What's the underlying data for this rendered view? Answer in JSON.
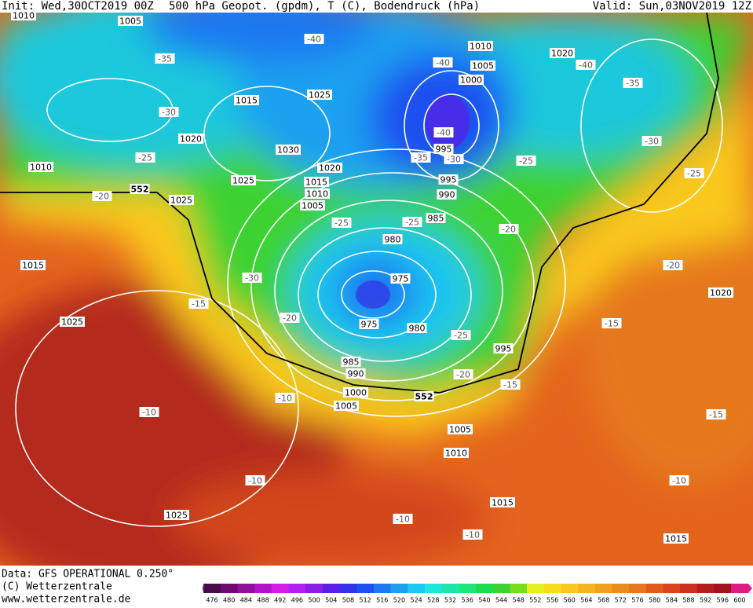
{
  "header": {
    "init": "Init: Wed,30OCT2019 00Z",
    "title": "500 hPa Geopot. (gpdm), T (C), Bodendruck (hPa)",
    "valid": "Valid: Sun,03NOV2019 12Z"
  },
  "footer": {
    "source": "Data: GFS OPERATIONAL 0.250°",
    "copyright": "(C) Wetterzentrale",
    "url": "www.wetterzentrale.de"
  },
  "legend": {
    "levels": [
      476,
      480,
      484,
      488,
      492,
      496,
      500,
      504,
      508,
      512,
      516,
      520,
      524,
      528,
      532,
      536,
      540,
      544,
      548,
      552,
      556,
      560,
      564,
      568,
      572,
      576,
      580,
      584,
      588,
      592,
      596,
      600
    ],
    "colors": [
      "#4b0a4b",
      "#6e0a6e",
      "#91109a",
      "#b414c8",
      "#d21ee6",
      "#b41ef0",
      "#8c1ee6",
      "#5a1ee6",
      "#3232e6",
      "#1e50f0",
      "#1e78f0",
      "#1ea0f0",
      "#1ec8f0",
      "#1ee6dc",
      "#1ee6aa",
      "#1ee678",
      "#1edc50",
      "#3cd232",
      "#78dc1e",
      "#e6f01e",
      "#fadc1e",
      "#fac81e",
      "#f5b41e",
      "#f0a01e",
      "#eb8c1e",
      "#e6781e",
      "#e15a1e",
      "#d7461e",
      "#c8321e",
      "#b41e1e",
      "#a0141e",
      "#dc1e82"
    ]
  },
  "pressure_labels": [
    "1010",
    "1005",
    "1010",
    "1005",
    "1000",
    "1020",
    "1015",
    "1025",
    "1020",
    "1030",
    "1020",
    "995",
    "1010",
    "1025",
    "1015",
    "1010",
    "1005",
    "995",
    "990",
    "985",
    "1025",
    "980",
    "975",
    "1015",
    "1025",
    "975",
    "980",
    "995",
    "1020",
    "985",
    "990",
    "1000",
    "1005",
    "1005",
    "1010",
    "1015",
    "1025",
    "1015"
  ],
  "temperature_labels": [
    "-40",
    "-35",
    "-40",
    "-40",
    "-35",
    "-30",
    "-40",
    "-35",
    "-30",
    "-25",
    "-30",
    "-25",
    "-25",
    "-20",
    "-25",
    "-25",
    "-20",
    "-30",
    "-20",
    "-15",
    "-20",
    "-25",
    "-15",
    "-20",
    "-15",
    "-10",
    "-10",
    "-15",
    "-10",
    "-10",
    "-10",
    "-10"
  ],
  "height_labels": [
    "552",
    "552"
  ]
}
